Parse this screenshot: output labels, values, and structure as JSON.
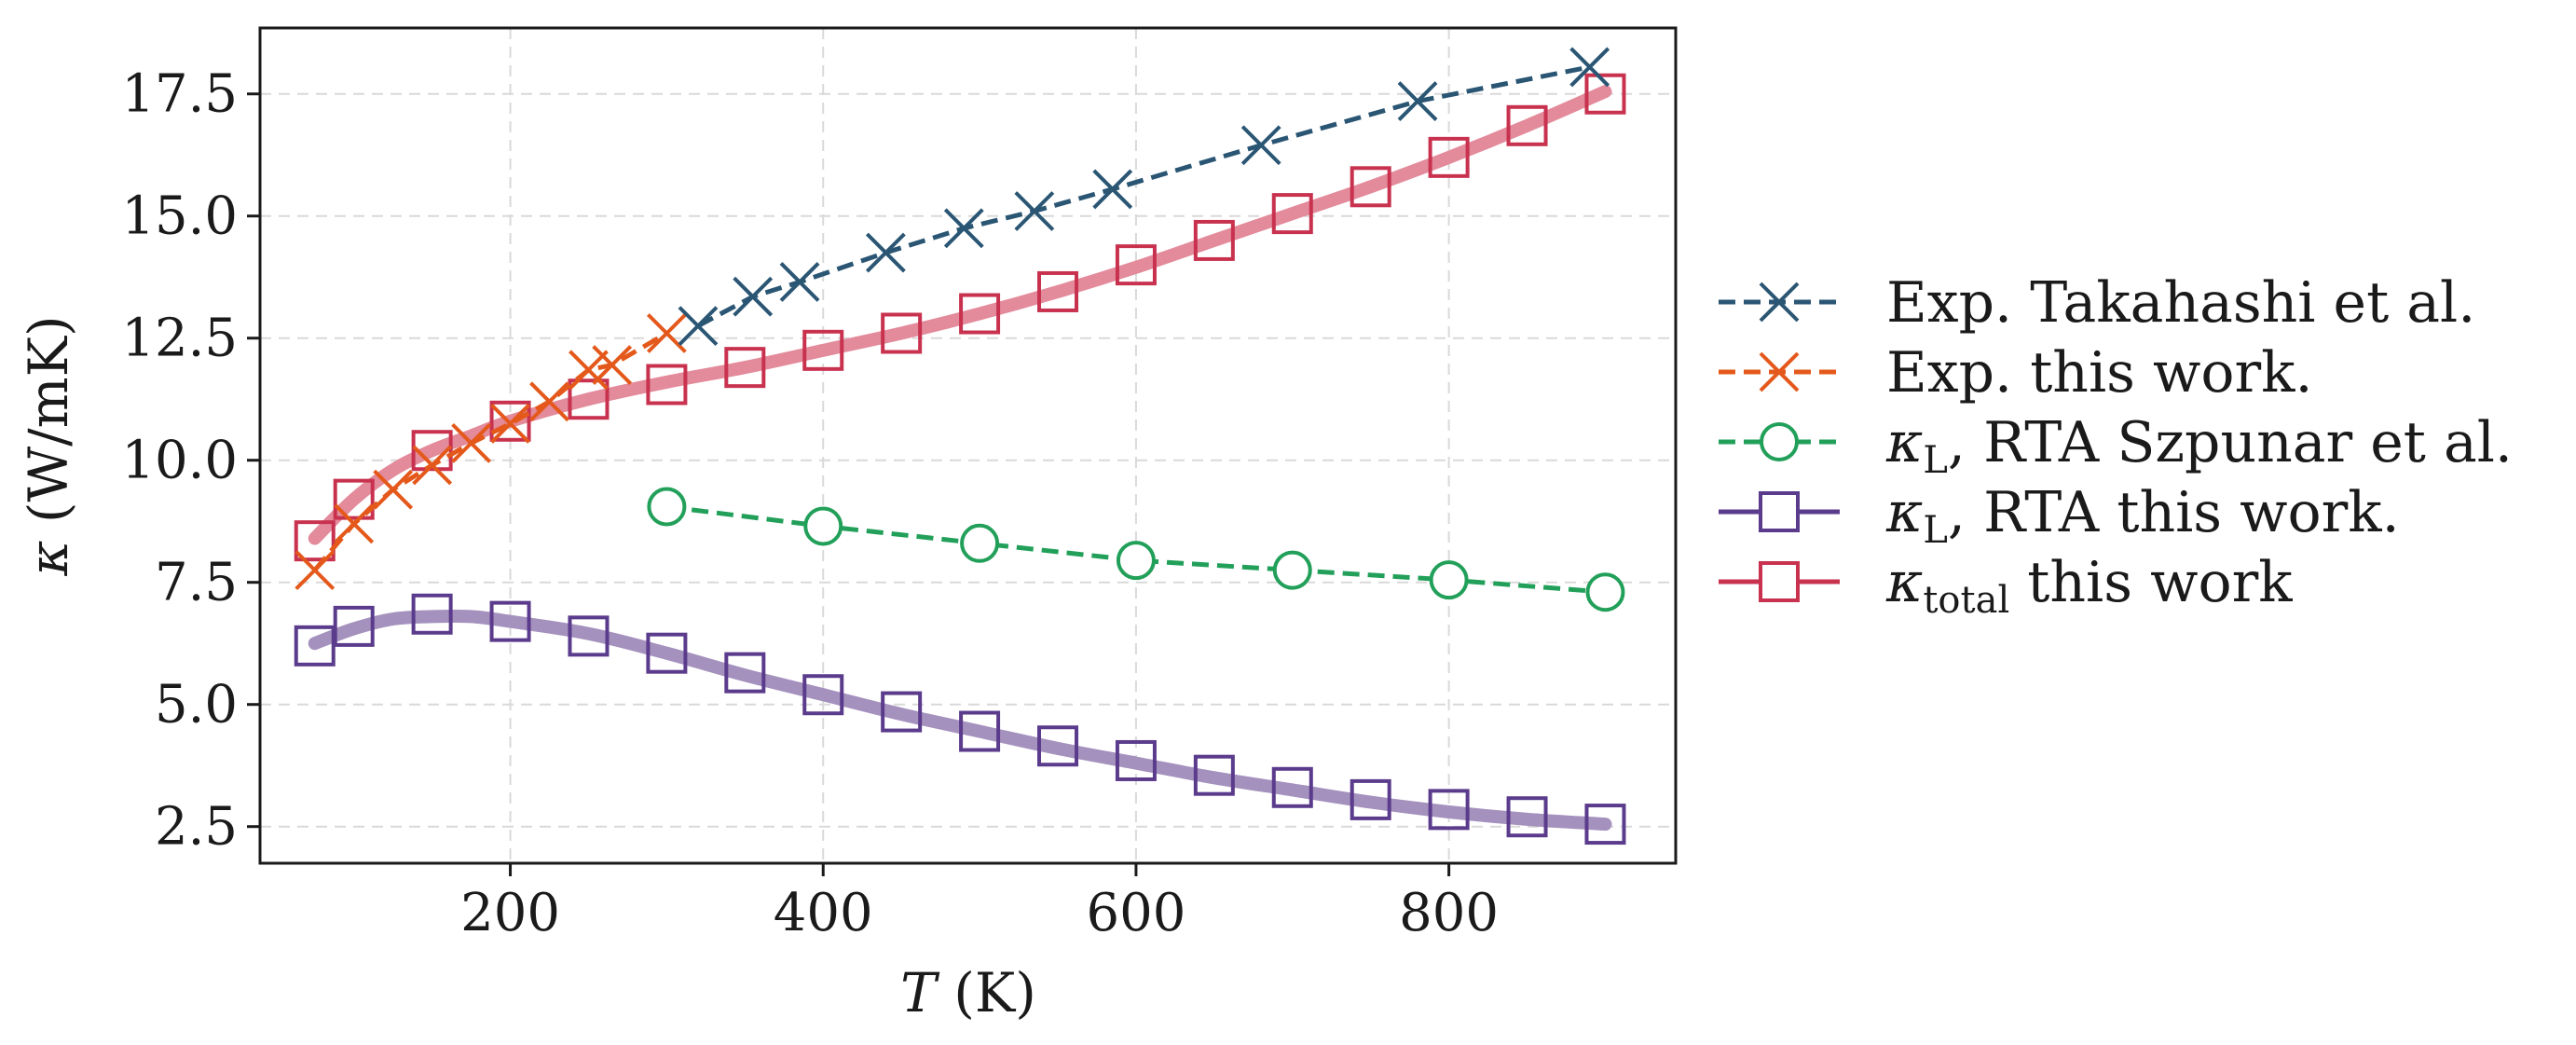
{
  "chart_data": {
    "type": "line",
    "xlabel": "T (K)",
    "xlabel_italic": "T",
    "xlabel_unit": " (K)",
    "ylabel": "κ (W/mK)",
    "ylabel_symbol": "κ",
    "ylabel_unit": " (W/mK)",
    "xlim": [
      40,
      945
    ],
    "ylim": [
      1.75,
      18.85
    ],
    "xticks": [
      200,
      400,
      600,
      800
    ],
    "yticks": [
      2.5,
      5.0,
      7.5,
      10.0,
      12.5,
      15.0,
      17.5
    ],
    "xtick_labels": [
      "200",
      "400",
      "600",
      "800"
    ],
    "ytick_labels": [
      "2.5",
      "5.0",
      "7.5",
      "10.0",
      "12.5",
      "15.0",
      "17.5"
    ],
    "grid": true,
    "legend_position": "outside-right",
    "series": [
      {
        "name": "Exp. Takahashi et al.",
        "legend_label": "Exp. Takahashi et al.",
        "marker": "x",
        "linestyle": "dashed",
        "color": "#2a5674",
        "x": [
          320,
          355,
          385,
          440,
          490,
          535,
          585,
          680,
          780,
          890
        ],
        "y": [
          12.75,
          13.35,
          13.65,
          14.25,
          14.75,
          15.1,
          15.55,
          16.45,
          17.35,
          18.05
        ]
      },
      {
        "name": "Exp. this work.",
        "legend_label": "Exp. this work.",
        "marker": "x",
        "linestyle": "dashed",
        "color": "#e4591b",
        "x": [
          75,
          100,
          125,
          150,
          175,
          200,
          225,
          250,
          265,
          300
        ],
        "y": [
          7.75,
          8.7,
          9.4,
          9.9,
          10.35,
          10.75,
          11.2,
          11.85,
          11.95,
          12.6
        ]
      },
      {
        "name": "κL, RTA Szpunar et al.",
        "legend_symbol": "κ",
        "legend_sub": "L",
        "legend_rest": ", RTA Szpunar et al.",
        "marker": "o",
        "linestyle": "dashed",
        "color": "#22a05a",
        "x": [
          300,
          400,
          500,
          600,
          700,
          800,
          900
        ],
        "y": [
          9.05,
          8.65,
          8.3,
          7.95,
          7.75,
          7.55,
          7.3
        ]
      },
      {
        "name": "κL, RTA this work.",
        "legend_symbol": "κ",
        "legend_sub": "L",
        "legend_rest": ", RTA this work.",
        "marker": "s",
        "linestyle": "solid",
        "color": "#5b3b8c",
        "curve_color": "#a491bd",
        "x": [
          75,
          100,
          150,
          200,
          250,
          300,
          350,
          400,
          450,
          500,
          550,
          600,
          650,
          700,
          750,
          800,
          850,
          900
        ],
        "y": [
          6.2,
          6.6,
          6.85,
          6.7,
          6.4,
          6.05,
          5.65,
          5.2,
          4.85,
          4.45,
          4.15,
          3.85,
          3.55,
          3.3,
          3.05,
          2.85,
          2.7,
          2.55
        ],
        "curve_x": [
          75,
          100,
          125,
          150,
          175,
          200,
          250,
          300,
          350,
          400,
          450,
          500,
          550,
          600,
          650,
          700,
          750,
          800,
          850,
          900
        ],
        "curve_y": [
          6.25,
          6.55,
          6.75,
          6.8,
          6.8,
          6.7,
          6.45,
          6.05,
          5.6,
          5.2,
          4.8,
          4.45,
          4.1,
          3.8,
          3.5,
          3.25,
          3.0,
          2.8,
          2.65,
          2.55
        ]
      },
      {
        "name": "κtotal this work",
        "legend_symbol": "κ",
        "legend_sub": "total",
        "legend_rest": " this work",
        "marker": "s",
        "linestyle": "solid",
        "color": "#c8324f",
        "curve_color": "#e38a9b",
        "x": [
          75,
          100,
          150,
          200,
          250,
          300,
          350,
          400,
          450,
          500,
          550,
          600,
          650,
          700,
          750,
          800,
          850,
          900
        ],
        "y": [
          8.35,
          9.2,
          10.2,
          10.8,
          11.25,
          11.55,
          11.9,
          12.25,
          12.6,
          13.0,
          13.45,
          14.0,
          14.5,
          15.05,
          15.6,
          16.2,
          16.85,
          17.5
        ],
        "curve_x": [
          75,
          100,
          125,
          150,
          175,
          200,
          250,
          300,
          350,
          400,
          450,
          500,
          550,
          600,
          650,
          700,
          750,
          800,
          850,
          900
        ],
        "curve_y": [
          8.4,
          9.2,
          9.8,
          10.2,
          10.5,
          10.8,
          11.25,
          11.6,
          11.9,
          12.25,
          12.6,
          13.0,
          13.45,
          13.95,
          14.5,
          15.05,
          15.6,
          16.2,
          16.85,
          17.55
        ]
      }
    ]
  }
}
